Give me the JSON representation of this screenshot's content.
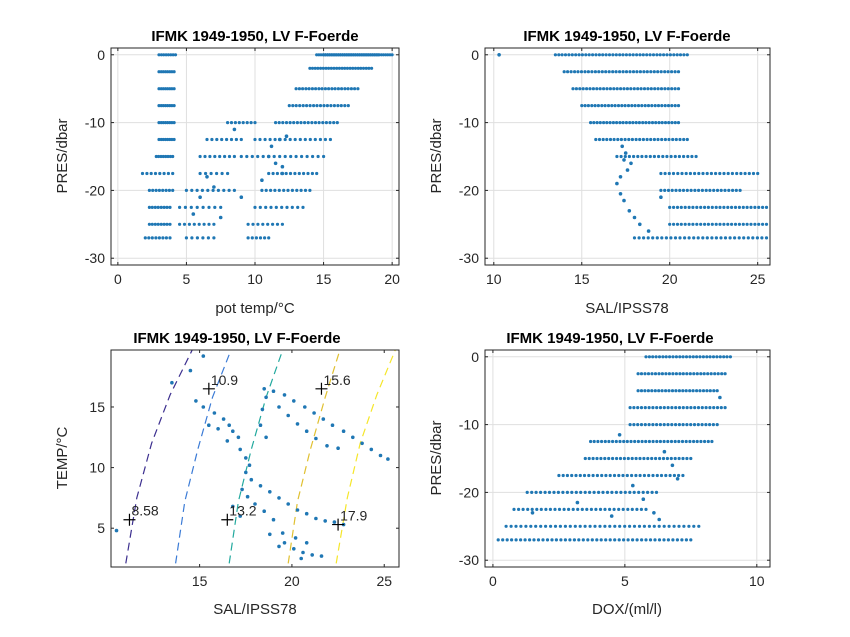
{
  "figure": {
    "background": "#ffffff",
    "marker_color": "#1f77b4"
  },
  "chart_data": [
    {
      "id": "p1",
      "type": "scatter",
      "title": "IFMK 1949-1950, LV F-Foerde",
      "xlabel": "pot temp/°C",
      "ylabel": "PRES/dbar",
      "xlim": [
        -0.5,
        20.5
      ],
      "ylim": [
        -31,
        1
      ],
      "xticks": [
        0,
        5,
        10,
        15,
        20
      ],
      "yticks": [
        0,
        -10,
        -20,
        -30
      ],
      "grid": true,
      "segments": [
        [
          14.5,
          20,
          0,
          36
        ],
        [
          15,
          19,
          0,
          30
        ],
        [
          14,
          18.5,
          -2,
          24
        ],
        [
          13,
          17.5,
          -5,
          20
        ],
        [
          12.5,
          16.8,
          -7.5,
          18
        ],
        [
          11.5,
          16,
          -10,
          18
        ],
        [
          10,
          15.5,
          -12.5,
          16
        ],
        [
          9,
          15,
          -15,
          16
        ],
        [
          11,
          14.5,
          -17.5,
          12
        ],
        [
          10.5,
          14,
          -20,
          12
        ],
        [
          10,
          13.5,
          -22.5,
          10
        ],
        [
          9.5,
          12,
          -25,
          8
        ],
        [
          9.5,
          11,
          -27,
          6
        ],
        [
          3,
          4.2,
          0,
          8
        ],
        [
          3,
          4.1,
          -2.5,
          8
        ],
        [
          3,
          4.1,
          -5,
          8
        ],
        [
          3,
          4.1,
          -7.5,
          8
        ],
        [
          3,
          4.1,
          -10,
          8
        ],
        [
          3,
          4.1,
          -12.5,
          8
        ],
        [
          2.8,
          4,
          -15,
          8
        ],
        [
          1.8,
          4,
          -17.5,
          8
        ],
        [
          2.3,
          4,
          -20,
          8
        ],
        [
          2.3,
          3.8,
          -22.5,
          8
        ],
        [
          2.3,
          3.8,
          -25,
          8
        ],
        [
          2,
          3.8,
          -27,
          8
        ],
        [
          8,
          10,
          -10,
          8
        ],
        [
          6.5,
          9,
          -12.5,
          8
        ],
        [
          6,
          8.5,
          -15,
          8
        ],
        [
          6,
          8,
          -17.5,
          6
        ],
        [
          5,
          8.5,
          -20,
          10
        ],
        [
          4.5,
          7.5,
          -22.5,
          8
        ],
        [
          4.5,
          7,
          -25,
          8
        ],
        [
          5,
          7,
          -27,
          6
        ]
      ],
      "points": [
        [
          6.5,
          -18
        ],
        [
          7,
          -19.5
        ],
        [
          6,
          -21
        ],
        [
          5.5,
          -23.5
        ],
        [
          7.5,
          -24
        ],
        [
          12,
          -17.5
        ],
        [
          11.5,
          -16
        ],
        [
          11,
          -15
        ],
        [
          11.2,
          -13.5
        ],
        [
          11.8,
          -12.5
        ],
        [
          12.3,
          -12
        ],
        [
          12,
          -16.5
        ],
        [
          10.5,
          -18.5
        ],
        [
          9,
          -21
        ],
        [
          8.5,
          -11
        ]
      ],
      "annotations": []
    },
    {
      "id": "p2",
      "type": "scatter",
      "title": "IFMK 1949-1950, LV F-Foerde",
      "xlabel": "SAL/IPSS78",
      "ylabel": "PRES/dbar",
      "xlim": [
        9.5,
        25.7
      ],
      "ylim": [
        -31,
        1
      ],
      "xticks": [
        10,
        15,
        20,
        25
      ],
      "yticks": [
        0,
        -10,
        -20,
        -30
      ],
      "grid": true,
      "segments": [
        [
          13.5,
          21,
          0,
          40
        ],
        [
          14,
          20.5,
          -2.5,
          34
        ],
        [
          14.5,
          20.5,
          -5,
          32
        ],
        [
          15,
          20.5,
          -7.5,
          30
        ],
        [
          15.5,
          20.5,
          -10,
          28
        ],
        [
          15.8,
          21,
          -12.5,
          26
        ],
        [
          17,
          21.5,
          -15,
          20
        ],
        [
          19.5,
          25,
          -17.5,
          24
        ],
        [
          19.5,
          24,
          -20,
          22
        ],
        [
          20,
          25.5,
          -22.5,
          26
        ],
        [
          20,
          25.5,
          -25,
          26
        ],
        [
          18,
          25.5,
          -27,
          30
        ]
      ],
      "points": [
        [
          10.3,
          0
        ],
        [
          17.3,
          -13.5
        ],
        [
          17.5,
          -14.5
        ],
        [
          17.4,
          -15.5
        ],
        [
          17.8,
          -16
        ],
        [
          17.6,
          -17
        ],
        [
          17.2,
          -18
        ],
        [
          17,
          -19
        ],
        [
          17.2,
          -20.5
        ],
        [
          17.4,
          -21.5
        ],
        [
          17.7,
          -23
        ],
        [
          18,
          -24
        ],
        [
          18.3,
          -25
        ],
        [
          18.8,
          -26
        ],
        [
          19.5,
          -21
        ]
      ],
      "annotations": []
    },
    {
      "id": "p3",
      "type": "scatter",
      "title": "IFMK 1949-1950, LV F-Foerde",
      "xlabel": "SAL/IPSS78",
      "ylabel": "TEMP/°C",
      "xlim": [
        10.2,
        25.8
      ],
      "ylim": [
        1.8,
        19.7
      ],
      "xticks": [
        15,
        20,
        25
      ],
      "yticks": [
        5,
        10,
        15
      ],
      "grid": false,
      "points": [
        [
          10.5,
          4.8
        ],
        [
          13.5,
          17
        ],
        [
          14.5,
          18
        ],
        [
          15.2,
          19.2
        ],
        [
          14.8,
          15.5
        ],
        [
          15.2,
          15
        ],
        [
          15.8,
          14.5
        ],
        [
          16.3,
          14
        ],
        [
          16.6,
          13.5
        ],
        [
          16.8,
          13
        ],
        [
          17.1,
          12.5
        ],
        [
          15.5,
          13.5
        ],
        [
          16,
          13.2
        ],
        [
          16.5,
          12.2
        ],
        [
          17.2,
          11.5
        ],
        [
          17.5,
          10.8
        ],
        [
          18.5,
          16.5
        ],
        [
          19,
          16.3
        ],
        [
          19.6,
          16
        ],
        [
          20.1,
          15.5
        ],
        [
          20.7,
          15
        ],
        [
          21.2,
          14.5
        ],
        [
          21.7,
          14
        ],
        [
          22.2,
          13.5
        ],
        [
          22.8,
          13
        ],
        [
          23.3,
          12.5
        ],
        [
          23.8,
          12
        ],
        [
          24.3,
          11.5
        ],
        [
          24.8,
          11
        ],
        [
          25.2,
          10.7
        ],
        [
          19.3,
          15
        ],
        [
          19.8,
          14.3
        ],
        [
          20.3,
          13.6
        ],
        [
          20.8,
          13
        ],
        [
          21.3,
          12.4
        ],
        [
          21.9,
          11.8
        ],
        [
          22.5,
          11.6
        ],
        [
          18.6,
          15.8
        ],
        [
          18.4,
          14.8
        ],
        [
          18.3,
          13.5
        ],
        [
          18.6,
          12.5
        ],
        [
          17.5,
          9.6
        ],
        [
          17.8,
          9
        ],
        [
          18.3,
          8.5
        ],
        [
          18.8,
          8
        ],
        [
          19.3,
          7.5
        ],
        [
          19.8,
          7
        ],
        [
          20.3,
          6.5
        ],
        [
          20.8,
          6.2
        ],
        [
          21.3,
          5.8
        ],
        [
          21.8,
          5.6
        ],
        [
          22.3,
          5.5
        ],
        [
          22.8,
          5.3
        ],
        [
          17.3,
          8.2
        ],
        [
          17.6,
          7.6
        ],
        [
          18,
          7
        ],
        [
          18.5,
          6.4
        ],
        [
          19,
          5.7
        ],
        [
          18.8,
          4.5
        ],
        [
          19.6,
          3.8
        ],
        [
          20.1,
          3.3
        ],
        [
          20.6,
          3
        ],
        [
          21.1,
          2.8
        ],
        [
          21.6,
          2.7
        ],
        [
          19.5,
          4.6
        ],
        [
          20.2,
          4.2
        ],
        [
          20.8,
          3.8
        ],
        [
          17.2,
          6
        ],
        [
          16.8,
          6.8
        ],
        [
          17.7,
          10.2
        ],
        [
          20.5,
          2.5
        ],
        [
          19.3,
          3.5
        ]
      ],
      "contours": [
        {
          "color": "#3c2f8f",
          "path": [
            [
              11,
              2.1
            ],
            [
              11.6,
              7.5
            ],
            [
              12.4,
              12
            ],
            [
              13.4,
              16
            ],
            [
              14.6,
              19.7
            ]
          ]
        },
        {
          "color": "#3b7bd6",
          "path": [
            [
              13.7,
              2.1
            ],
            [
              14.2,
              7.2
            ],
            [
              14.9,
              11.5
            ],
            [
              15.7,
              15.8
            ],
            [
              16.7,
              19.7
            ]
          ]
        },
        {
          "color": "#22a99e",
          "path": [
            [
              16.6,
              2.1
            ],
            [
              17.1,
              7.2
            ],
            [
              17.8,
              11.5
            ],
            [
              18.6,
              15.8
            ],
            [
              19.5,
              19.7
            ]
          ]
        },
        {
          "color": "#e0c030",
          "path": [
            [
              19.8,
              2.1
            ],
            [
              20.3,
              7.2
            ],
            [
              21,
              11.5
            ],
            [
              21.8,
              15.8
            ],
            [
              22.6,
              19.7
            ]
          ]
        },
        {
          "color": "#f5e62a",
          "path": [
            [
              22.4,
              2.1
            ],
            [
              23,
              7.5
            ],
            [
              23.7,
              12
            ],
            [
              24.6,
              16
            ],
            [
              25.6,
              19.7
            ]
          ]
        }
      ],
      "annotations": [
        {
          "text": "10.9",
          "x": 15.5,
          "y": 16.5
        },
        {
          "text": "15.6",
          "x": 21.6,
          "y": 16.5
        },
        {
          "text": "8.58",
          "x": 11.2,
          "y": 5.7
        },
        {
          "text": "13.2",
          "x": 16.5,
          "y": 5.7
        },
        {
          "text": "17.9",
          "x": 22.5,
          "y": 5.3
        }
      ]
    },
    {
      "id": "p4",
      "type": "scatter",
      "title": "IFMK 1949-1950, LV F-Foerde",
      "xlabel": "DOX/(ml/l)",
      "ylabel": "PRES/dbar",
      "xlim": [
        -0.3,
        10.5
      ],
      "ylim": [
        -31,
        1
      ],
      "xticks": [
        0,
        5,
        10
      ],
      "yticks": [
        0,
        -10,
        -20,
        -30
      ],
      "grid": true,
      "segments": [
        [
          5.8,
          9,
          0,
          26
        ],
        [
          5.5,
          8.8,
          -2.5,
          26
        ],
        [
          5.5,
          8.5,
          -5,
          24
        ],
        [
          5.2,
          8.8,
          -7.5,
          26
        ],
        [
          5.2,
          8.5,
          -10,
          24
        ],
        [
          3.7,
          8.3,
          -12.5,
          34
        ],
        [
          3.5,
          7.5,
          -15,
          28
        ],
        [
          2.5,
          7.2,
          -17.5,
          30
        ],
        [
          1.3,
          6.2,
          -20,
          30
        ],
        [
          0.8,
          5.8,
          -22.5,
          30
        ],
        [
          0.5,
          7.8,
          -25,
          40
        ],
        [
          0.2,
          7.5,
          -27,
          44
        ]
      ],
      "points": [
        [
          6.5,
          -14
        ],
        [
          6.8,
          -16
        ],
        [
          7,
          -18
        ],
        [
          5.3,
          -19
        ],
        [
          5.7,
          -21
        ],
        [
          6.1,
          -23
        ],
        [
          6.3,
          -24
        ],
        [
          3.2,
          -21.5
        ],
        [
          4.5,
          -23.5
        ],
        [
          1.5,
          -23
        ],
        [
          4.8,
          -11.5
        ],
        [
          8.6,
          -6
        ]
      ],
      "annotations": []
    }
  ]
}
